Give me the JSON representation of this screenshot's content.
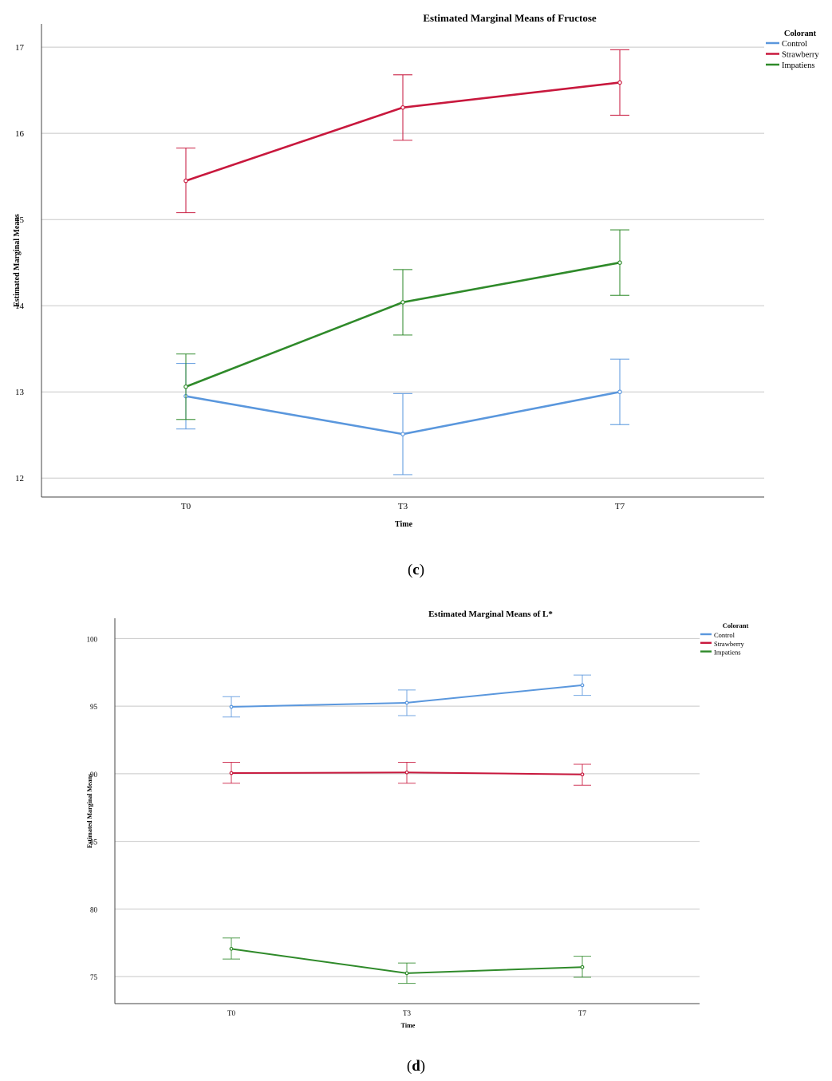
{
  "colors": {
    "Control": "#5a97dd",
    "Strawberry": "#c8183d",
    "Impatiens": "#2f8a2a",
    "grid": "#c8c8c8",
    "axis": "#444444"
  },
  "captions": [
    {
      "open": "(",
      "letter": "c",
      "close": ")"
    },
    {
      "open": "(",
      "letter": "d",
      "close": ")"
    }
  ],
  "chart_data": [
    {
      "type": "line",
      "title": "Estimated Marginal Means of Fructose",
      "xlabel": "Time",
      "ylabel": "Estimated Marginal Means",
      "categories": [
        "T0",
        "T3",
        "T7"
      ],
      "ylim": [
        11.78,
        17.27
      ],
      "yticks": [
        12,
        13,
        14,
        15,
        16,
        17
      ],
      "legend_title": "Colorant",
      "legend_position": "top-right",
      "series": [
        {
          "name": "Control",
          "values": [
            12.95,
            12.51,
            13.0
          ],
          "lower": [
            12.57,
            12.04,
            12.62
          ],
          "upper": [
            13.33,
            12.98,
            13.38
          ]
        },
        {
          "name": "Strawberry",
          "values": [
            15.45,
            16.3,
            16.59
          ],
          "lower": [
            15.08,
            15.92,
            16.21
          ],
          "upper": [
            15.83,
            16.68,
            16.97
          ]
        },
        {
          "name": "Impatiens",
          "values": [
            13.06,
            14.04,
            14.5
          ],
          "lower": [
            12.68,
            13.66,
            14.12
          ],
          "upper": [
            13.44,
            14.42,
            14.88
          ]
        }
      ]
    },
    {
      "type": "line",
      "title": "Estimated Marginal Means of L*",
      "xlabel": "Time",
      "ylabel": "Estimated Marginal Means",
      "categories": [
        "T0",
        "T3",
        "T7"
      ],
      "ylim": [
        73.0,
        101.5
      ],
      "yticks": [
        75,
        80,
        85,
        90,
        95,
        100
      ],
      "legend_title": "Colorant",
      "legend_position": "top-right",
      "series": [
        {
          "name": "Control",
          "values": [
            94.95,
            95.25,
            96.55
          ],
          "lower": [
            94.2,
            94.3,
            95.8
          ],
          "upper": [
            95.7,
            96.2,
            97.3
          ]
        },
        {
          "name": "Strawberry",
          "values": [
            90.05,
            90.1,
            89.95
          ],
          "lower": [
            89.3,
            89.3,
            89.15
          ],
          "upper": [
            90.85,
            90.85,
            90.7
          ]
        },
        {
          "name": "Impatiens",
          "values": [
            77.05,
            75.25,
            75.7
          ],
          "lower": [
            76.3,
            74.5,
            74.95
          ],
          "upper": [
            77.85,
            76.0,
            76.5
          ]
        }
      ]
    }
  ]
}
